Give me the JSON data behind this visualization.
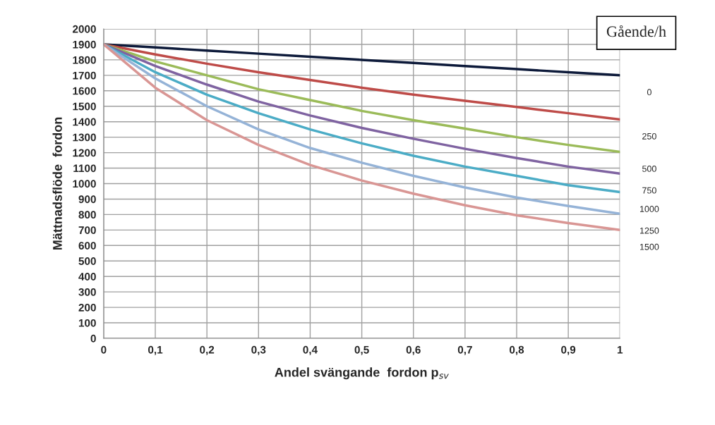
{
  "chart_data": {
    "type": "line",
    "xlabel": "Andel svängande  fordon p$_{sv}$",
    "ylabel": "Mättnadsflöde  fordon",
    "legend_title": "Gående/h",
    "x": [
      0,
      0.1,
      0.2,
      0.3,
      0.4,
      0.5,
      0.6,
      0.7,
      0.8,
      0.9,
      1
    ],
    "series": [
      {
        "name": "0",
        "color": "#0d1a3a",
        "values": [
          1900,
          1880,
          1860,
          1840,
          1820,
          1800,
          1780,
          1760,
          1740,
          1720,
          1700
        ]
      },
      {
        "name": "250",
        "color": "#be4b48",
        "values": [
          1900,
          1835,
          1775,
          1720,
          1670,
          1620,
          1575,
          1535,
          1495,
          1455,
          1415
        ]
      },
      {
        "name": "500",
        "color": "#9bbb59",
        "values": [
          1900,
          1790,
          1700,
          1610,
          1540,
          1470,
          1410,
          1355,
          1300,
          1250,
          1205
        ]
      },
      {
        "name": "750",
        "color": "#7f63a1",
        "values": [
          1900,
          1760,
          1640,
          1530,
          1440,
          1360,
          1290,
          1225,
          1165,
          1110,
          1065
        ]
      },
      {
        "name": "1000",
        "color": "#4bacc6",
        "values": [
          1900,
          1720,
          1575,
          1455,
          1350,
          1260,
          1180,
          1110,
          1050,
          990,
          945
        ]
      },
      {
        "name": "1250",
        "color": "#95b3d7",
        "values": [
          1900,
          1680,
          1500,
          1350,
          1230,
          1135,
          1050,
          975,
          910,
          855,
          805
        ]
      },
      {
        "name": "1500",
        "color": "#d99694",
        "values": [
          1900,
          1620,
          1410,
          1250,
          1120,
          1020,
          935,
          860,
          795,
          745,
          700
        ]
      }
    ],
    "xlim": [
      0,
      1
    ],
    "xticks": [
      0,
      {
        "value": 0.1,
        "label": "0,1"
      },
      {
        "value": 0.2,
        "label": "0,2"
      },
      {
        "value": 0.3,
        "label": "0,3"
      },
      {
        "value": 0.4,
        "label": "0,4"
      },
      {
        "value": 0.5,
        "label": "0,5"
      },
      {
        "value": 0.6,
        "label": "0,6"
      },
      {
        "value": 0.7,
        "label": "0,7"
      },
      {
        "value": 0.8,
        "label": "0,8"
      },
      {
        "value": 0.9,
        "label": "0,9"
      },
      1
    ],
    "ylim": [
      0,
      2000
    ],
    "yticks": [
      0,
      100,
      200,
      300,
      400,
      500,
      600,
      700,
      800,
      900,
      1000,
      1100,
      1200,
      1300,
      1400,
      1500,
      1600,
      1700,
      1800,
      1900,
      2000
    ],
    "grid": true,
    "legend": "top right",
    "marker": "none",
    "line_style": "solid"
  }
}
